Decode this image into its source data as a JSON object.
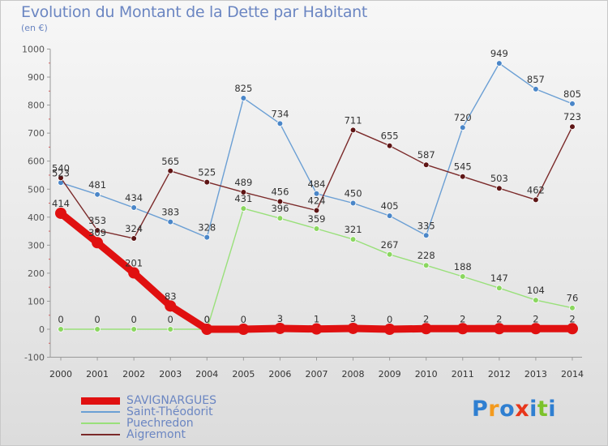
{
  "chart_data": {
    "type": "line",
    "title": "Evolution du Montant de la Dette par Habitant",
    "unit": "(en €)",
    "x": [
      "2000",
      "2001",
      "2002",
      "2003",
      "2004",
      "2005",
      "2006",
      "2007",
      "2008",
      "2009",
      "2010",
      "2011",
      "2012",
      "2013",
      "2014"
    ],
    "ylim": [
      -100,
      1000
    ],
    "yticks": [
      "-100",
      "0",
      "100",
      "200",
      "300",
      "400",
      "500",
      "600",
      "700",
      "800",
      "900",
      "1000"
    ],
    "grid": false,
    "legend_position": "bottom-left",
    "series": [
      {
        "name": "SAVIGNARGUES",
        "color": "#e01010",
        "values": [
          414,
          309,
          201,
          83,
          0,
          0,
          3,
          1,
          3,
          0,
          2,
          2,
          2,
          2,
          2
        ]
      },
      {
        "name": "Saint-Théodorit",
        "color": "#6b9fd4",
        "values": [
          523,
          481,
          434,
          383,
          328,
          825,
          734,
          484,
          450,
          405,
          335,
          720,
          949,
          857,
          805
        ]
      },
      {
        "name": "Puechredon",
        "color": "#99e07a",
        "values": [
          0,
          0,
          0,
          0,
          0,
          431,
          396,
          359,
          321,
          267,
          228,
          188,
          147,
          104,
          76
        ]
      },
      {
        "name": "Aigremont",
        "color": "#7b2a2a",
        "values": [
          540,
          353,
          324,
          565,
          525,
          489,
          456,
          424,
          711,
          655,
          587,
          545,
          503,
          462,
          723
        ]
      }
    ]
  },
  "logo": {
    "text": "Proxiti",
    "alt_text": "Proxiti logo"
  }
}
